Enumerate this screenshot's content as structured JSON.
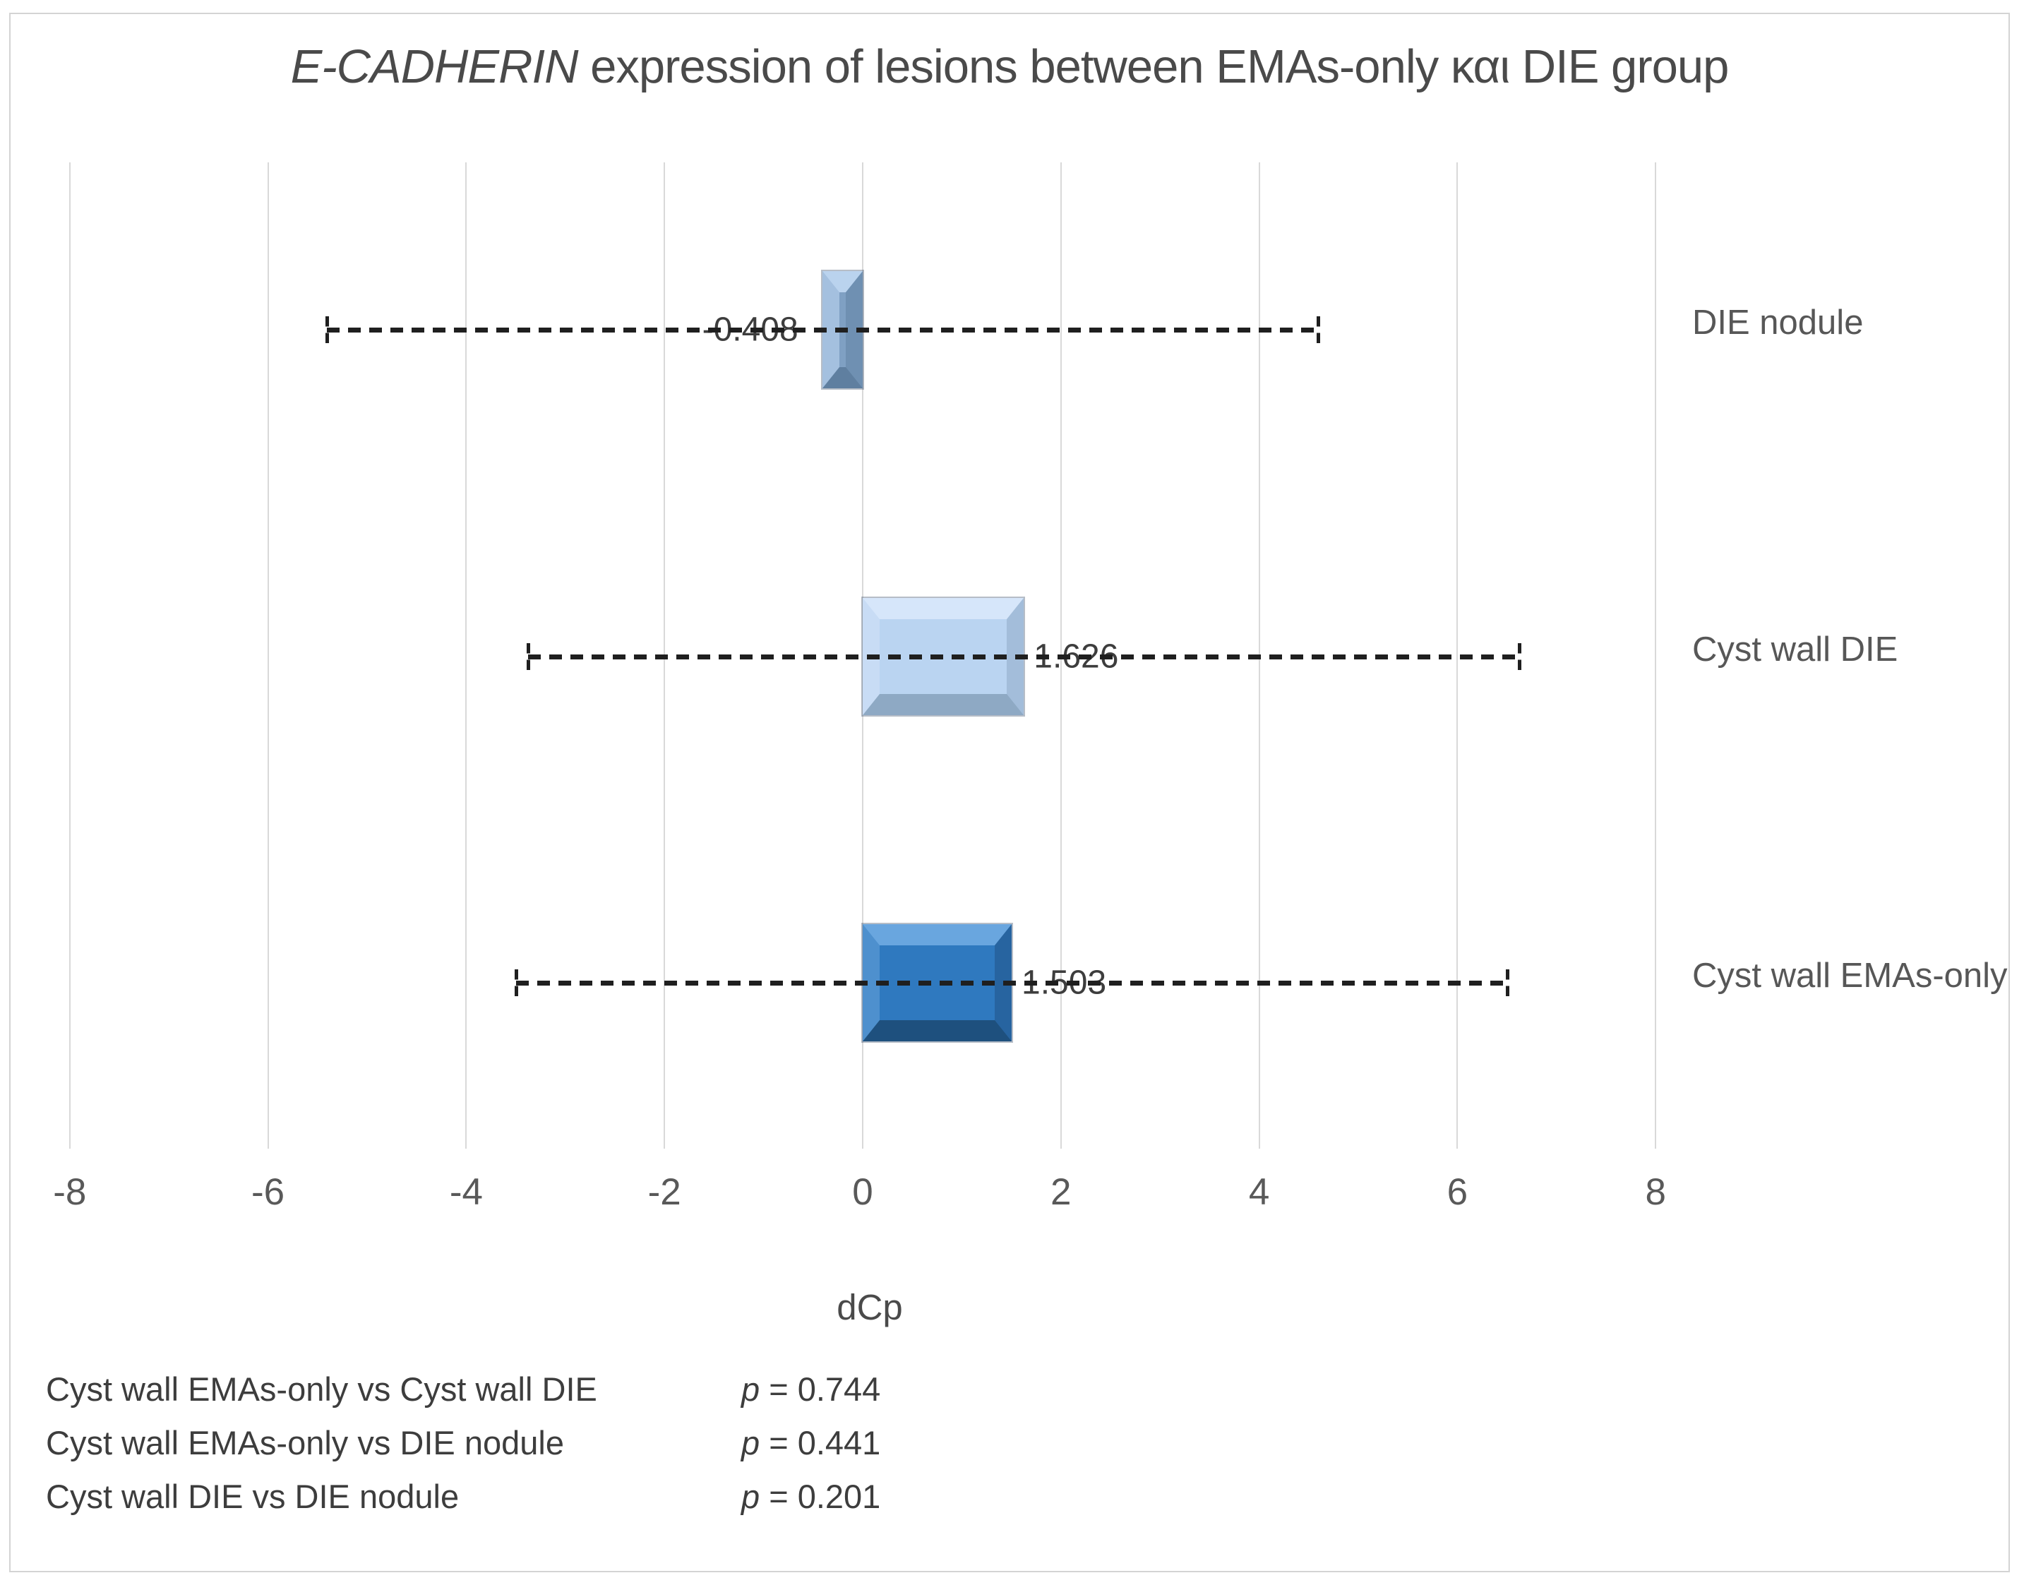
{
  "title": {
    "italic": "E-CADHERIN",
    "rest": " expression of lesions between EMAs-only και DIE group"
  },
  "chart_data": {
    "type": "bar",
    "orientation": "horizontal",
    "title": "E-CADHERIN expression of lesions between EMAs-only και DIE group",
    "xlabel": "dCp",
    "ylabel": "",
    "xlim": [
      -8,
      8
    ],
    "grid": "vertical-only",
    "legend": "none",
    "categories": [
      "DIE nodule",
      "Cyst wall DIE",
      "Cyst wall EMAs-only"
    ],
    "values": [
      -0.408,
      1.626,
      1.503
    ],
    "value_labels": [
      "-0.408",
      "1.626",
      "1.503"
    ],
    "error_whisker_halfwidth": [
      5.0,
      5.0,
      5.0
    ],
    "whisker_low": [
      -5.408,
      -3.374,
      -3.497
    ],
    "whisker_high": [
      4.592,
      6.626,
      6.503
    ],
    "x_ticks": [
      "-8",
      "-6",
      "-4",
      "-2",
      "0",
      "2",
      "4",
      "6",
      "8"
    ],
    "x_tick_values": [
      -8,
      -6,
      -4,
      -2,
      0,
      2,
      4,
      6,
      8
    ],
    "bar_style": "3d-bevel",
    "bar_colors": [
      {
        "face": "#7FA0C3",
        "top": "#BAD3EE",
        "left": "#A4C0DF",
        "right": "#6F90B2",
        "bottom": "#5F7FA0"
      },
      {
        "face": "#BAD4F1",
        "top": "#D6E6FA",
        "left": "#C8DCF5",
        "right": "#A3BDDA",
        "bottom": "#8EA9C4"
      },
      {
        "face": "#2F79BF",
        "top": "#69A6DF",
        "left": "#4E90CE",
        "right": "#2764A0",
        "bottom": "#1E507E"
      }
    ],
    "whisker_color": "#1f1f1f",
    "gridline_color": "#d9d9d9"
  },
  "annotations": {
    "rows": [
      {
        "label": "Cyst wall EMAs-only vs Cyst wall DIE",
        "p_symbol": "p",
        "p_rest": " = 0.744"
      },
      {
        "label": "Cyst wall EMAs-only vs DIE nodule",
        "p_symbol": "p",
        "p_rest": " = 0.441"
      },
      {
        "label": "Cyst wall DIE vs DIE nodule",
        "p_symbol": "p",
        "p_rest": " = 0.201"
      }
    ]
  }
}
